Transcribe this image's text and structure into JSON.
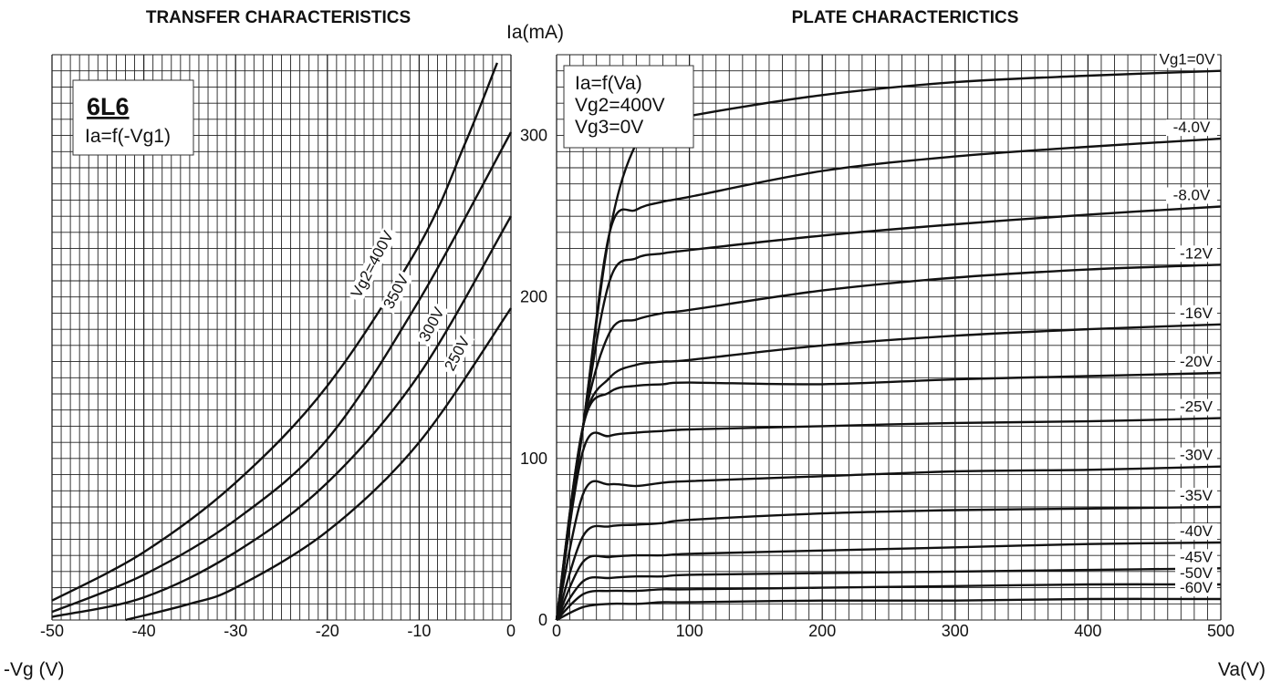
{
  "chart_data": [
    {
      "type": "line",
      "title": "TRANSFER CHARACTERISTICS",
      "xlabel": "-Vg (V)",
      "ylabel": "Ia(mA)",
      "xlim": [
        -50,
        0
      ],
      "ylim": [
        0,
        350
      ],
      "x_ticks": [
        "-50",
        "-40",
        "-30",
        "-20",
        "-10",
        "0"
      ],
      "grid": true,
      "legend_box": {
        "title": "6L6",
        "subtitle": "Ia=f(-Vg1)"
      },
      "series": [
        {
          "name": "Vg2=400V",
          "x": [
            -50,
            -40,
            -30,
            -20,
            -10,
            -5,
            -1.5
          ],
          "y": [
            12,
            42,
            85,
            145,
            232,
            295,
            345
          ]
        },
        {
          "name": "350V",
          "x": [
            -50,
            -40,
            -30,
            -20,
            -10,
            0
          ],
          "y": [
            5,
            28,
            62,
            112,
            198,
            302
          ]
        },
        {
          "name": "300V",
          "x": [
            -50,
            -40,
            -30,
            -20,
            -10,
            0
          ],
          "y": [
            2,
            14,
            42,
            85,
            152,
            250
          ]
        },
        {
          "name": "250V",
          "x": [
            -42,
            -35,
            -30,
            -20,
            -10,
            0
          ],
          "y": [
            0,
            10,
            20,
            55,
            110,
            193
          ]
        }
      ]
    },
    {
      "type": "line",
      "title": "PLATE CHARACTERICTICS",
      "xlabel": "Va(V)",
      "ylabel": "Ia(mA)",
      "xlim": [
        0,
        500
      ],
      "ylim": [
        0,
        350
      ],
      "x_ticks": [
        "0",
        "100",
        "200",
        "300",
        "400",
        "500"
      ],
      "y_ticks": [
        "0",
        "100",
        "200",
        "300"
      ],
      "grid": true,
      "legend_box": {
        "lines": [
          "Ia=f(Va)",
          "Vg2=400V",
          "Vg3=0V"
        ]
      },
      "series": [
        {
          "name": "Vg1=0V",
          "x": [
            0,
            20,
            40,
            60,
            80,
            100,
            200,
            300,
            400,
            500
          ],
          "y": [
            0,
            120,
            240,
            295,
            306,
            312,
            325,
            333,
            337,
            340
          ]
        },
        {
          "name": "-4.0V",
          "x": [
            0,
            20,
            40,
            60,
            80,
            100,
            200,
            300,
            400,
            500
          ],
          "y": [
            0,
            120,
            240,
            254,
            259,
            262,
            278,
            287,
            293,
            298
          ]
        },
        {
          "name": "-8.0V",
          "x": [
            0,
            20,
            40,
            60,
            80,
            100,
            200,
            300,
            400,
            500
          ],
          "y": [
            0,
            120,
            210,
            224,
            227,
            229,
            238,
            245,
            251,
            256
          ]
        },
        {
          "name": "-12V",
          "x": [
            0,
            20,
            40,
            60,
            80,
            100,
            200,
            300,
            400,
            500
          ],
          "y": [
            0,
            120,
            178,
            186,
            190,
            192,
            204,
            212,
            217,
            220
          ]
        },
        {
          "name": "-16V",
          "x": [
            0,
            20,
            40,
            60,
            80,
            100,
            200,
            300,
            400,
            500
          ],
          "y": [
            0,
            120,
            150,
            158,
            160,
            161,
            170,
            176,
            180,
            183
          ]
        },
        {
          "name": "-20V",
          "x": [
            0,
            20,
            40,
            60,
            80,
            100,
            200,
            300,
            400,
            500
          ],
          "y": [
            0,
            120,
            141,
            145,
            146,
            147,
            146,
            149,
            151,
            153
          ]
        },
        {
          "name": "-25V",
          "x": [
            0,
            20,
            40,
            60,
            80,
            100,
            200,
            300,
            400,
            500
          ],
          "y": [
            0,
            105,
            114,
            116,
            117,
            118,
            120,
            122,
            123,
            125
          ]
        },
        {
          "name": "-30V",
          "x": [
            0,
            20,
            40,
            60,
            80,
            100,
            200,
            300,
            400,
            500
          ],
          "y": [
            0,
            78,
            84,
            83,
            85,
            86,
            89,
            92,
            93,
            95
          ]
        },
        {
          "name": "-35V",
          "x": [
            0,
            20,
            40,
            60,
            80,
            100,
            200,
            300,
            400,
            500
          ],
          "y": [
            0,
            52,
            58,
            59,
            60,
            62,
            66,
            68,
            69,
            70
          ]
        },
        {
          "name": "-40V",
          "x": [
            0,
            20,
            40,
            60,
            80,
            100,
            200,
            300,
            400,
            500
          ],
          "y": [
            0,
            36,
            39,
            40,
            40,
            41,
            43,
            45,
            47,
            48
          ]
        },
        {
          "name": "-45V",
          "x": [
            0,
            20,
            40,
            60,
            80,
            100,
            200,
            300,
            400,
            500
          ],
          "y": [
            0,
            24,
            26,
            27,
            27,
            28,
            29,
            30,
            31,
            32
          ]
        },
        {
          "name": "-50V",
          "x": [
            0,
            20,
            40,
            60,
            80,
            100,
            200,
            300,
            400,
            500
          ],
          "y": [
            0,
            16,
            18,
            18,
            19,
            19,
            20,
            21,
            22,
            22
          ]
        },
        {
          "name": "-60V",
          "x": [
            0,
            20,
            40,
            60,
            80,
            100,
            200,
            300,
            400,
            500
          ],
          "y": [
            0,
            8,
            10,
            10,
            11,
            11,
            12,
            12,
            13,
            13
          ]
        }
      ]
    }
  ]
}
